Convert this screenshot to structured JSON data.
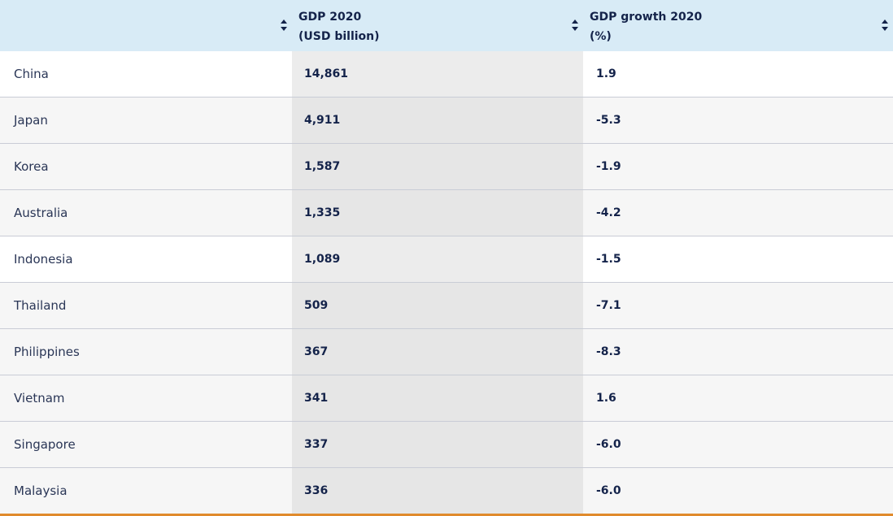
{
  "table": {
    "headers": {
      "country": "",
      "gdp": "GDP 2020\n(USD billion)",
      "growth": "GDP growth 2020\n(%)"
    },
    "rows": [
      {
        "country": "China",
        "gdp": "14,861",
        "growth": "1.9"
      },
      {
        "country": "Japan",
        "gdp": "4,911",
        "growth": "-5.3"
      },
      {
        "country": "Korea",
        "gdp": "1,587",
        "growth": "-1.9"
      },
      {
        "country": "Australia",
        "gdp": "1,335",
        "growth": "-4.2"
      },
      {
        "country": "Indonesia",
        "gdp": "1,089",
        "growth": "-1.5"
      },
      {
        "country": "Thailand",
        "gdp": "509",
        "growth": "-7.1"
      },
      {
        "country": "Philippines",
        "gdp": "367",
        "growth": "-8.3"
      },
      {
        "country": "Vietnam",
        "gdp": "341",
        "growth": "1.6"
      },
      {
        "country": "Singapore",
        "gdp": "337",
        "growth": "-6.0"
      },
      {
        "country": "Malaysia",
        "gdp": "336",
        "growth": "-6.0"
      }
    ]
  },
  "colors": {
    "header_bg": "#d8ebf6",
    "highlight_col_bg": "#ececec",
    "accent_rule": "#e08a2c",
    "text": "#14234a"
  },
  "icons": {
    "sort": "sort-icon"
  }
}
